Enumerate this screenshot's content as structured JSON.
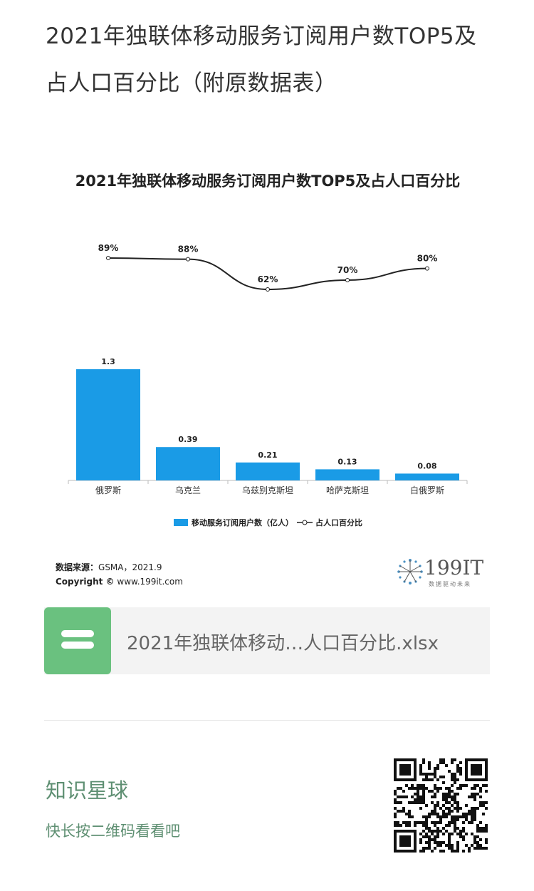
{
  "post": {
    "title_line1": "2021年独联体移动服务订阅用户数TOP5及",
    "title_line2": "占人口百分比（附原数据表）"
  },
  "chart_data": {
    "type": "bar",
    "title": "2021年独联体移动服务订阅用户数TOP5及占人口百分比",
    "categories": [
      "俄罗斯",
      "乌克兰",
      "乌兹别克斯坦",
      "哈萨克斯坦",
      "白俄罗斯"
    ],
    "series": [
      {
        "name": "移动服务订阅用户数（亿人）",
        "type": "bar",
        "values": [
          1.3,
          0.39,
          0.21,
          0.13,
          0.08
        ],
        "labels": [
          "1.3",
          "0.39",
          "0.21",
          "0.13",
          "0.08"
        ],
        "color": "#1a9be6"
      },
      {
        "name": "占人口百分比",
        "type": "line",
        "values": [
          89,
          88,
          62,
          70,
          80
        ],
        "labels": [
          "89%",
          "88%",
          "62%",
          "70%",
          "80%"
        ],
        "color": "#222222"
      }
    ],
    "legend_position": "bottom",
    "grid": false
  },
  "source": {
    "label": "数据来源：",
    "text": "GSMA，2021.9",
    "copyright_label": "Copyright ©",
    "copyright_text": "www.199it.com"
  },
  "logo": {
    "text": "199IT",
    "sub": "数据驱动未来"
  },
  "file": {
    "name": "2021年独联体移动…人口百分比.xlsx",
    "icon": "wps-sheet-icon",
    "icon_color": "#6ac17f"
  },
  "promo": {
    "title": "知识星球",
    "subtitle": "快长按二维码看看吧",
    "qr_icon": "qr-code-icon"
  }
}
